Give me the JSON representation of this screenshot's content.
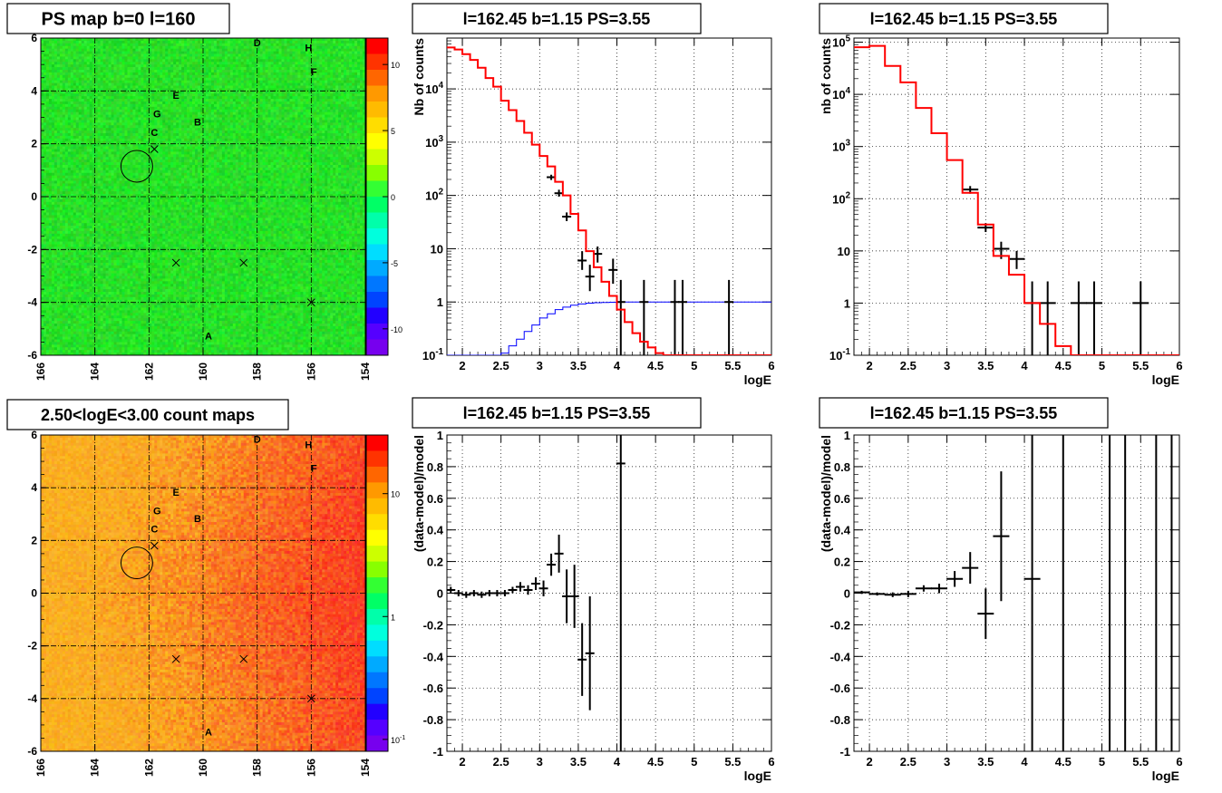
{
  "colors": {
    "frame": "#000000",
    "model_line": "#ff0000",
    "source_line": "#0000ff",
    "data_points": "#000000",
    "grid": "#000000",
    "ps_map_base": "#22e02a",
    "count_map_base": "#f2a32c"
  },
  "chart_data": [
    {
      "id": "ps-map",
      "type": "heatmap",
      "title": "PS map b=0 l=160",
      "x_ticks": [
        "166",
        "164",
        "162",
        "160",
        "158",
        "156",
        "154"
      ],
      "y_ticks": [
        "6",
        "4",
        "2",
        "0",
        "-2",
        "-4",
        "-6"
      ],
      "xlim": [
        166,
        154
      ],
      "ylim": [
        -6,
        6
      ],
      "colorbar_ticks": [
        "10",
        "5",
        "0",
        "-5",
        "-10"
      ],
      "colorbar_range": [
        -12,
        12
      ],
      "source_labels": [
        {
          "label": "D",
          "l": 158.0,
          "b": 5.7
        },
        {
          "label": "H",
          "l": 156.1,
          "b": 5.5
        },
        {
          "label": "F",
          "l": 155.9,
          "b": 4.6
        },
        {
          "label": "E",
          "l": 161.0,
          "b": 3.7
        },
        {
          "label": "G",
          "l": 161.7,
          "b": 3.0
        },
        {
          "label": "B",
          "l": 160.2,
          "b": 2.7
        },
        {
          "label": "C",
          "l": 161.8,
          "b": 2.3
        },
        {
          "label": "A",
          "l": 159.8,
          "b": -5.4
        }
      ],
      "crosses": [
        {
          "l": 161.8,
          "b": 1.8
        },
        {
          "l": 161.0,
          "b": -2.5
        },
        {
          "l": 158.5,
          "b": -2.5
        },
        {
          "l": 156.0,
          "b": -4.0
        }
      ],
      "circle": {
        "l": 162.45,
        "b": 1.15,
        "r": 0.5
      }
    },
    {
      "id": "count-map",
      "type": "heatmap",
      "title": "2.50<logE<3.00 count maps",
      "x_ticks": [
        "166",
        "164",
        "162",
        "160",
        "158",
        "156",
        "154"
      ],
      "y_ticks": [
        "6",
        "4",
        "2",
        "0",
        "-2",
        "-4",
        "-6"
      ],
      "xlim": [
        166,
        154
      ],
      "ylim": [
        -6,
        6
      ],
      "colorbar_ticks": [
        "10",
        "1",
        "10-1"
      ],
      "colorbar_range": [
        0.08,
        30
      ],
      "colorbar_scale": "log"
    },
    {
      "id": "spectrum-fine",
      "type": "line",
      "title": "l=162.45 b=1.15 PS=3.55",
      "xlabel": "logE",
      "ylabel": "Nb of counts",
      "xlim": [
        1.8,
        6
      ],
      "ylim": [
        0.1,
        90000
      ],
      "yscale": "log",
      "grid": true,
      "x_ticks": [
        "2",
        "2.5",
        "3",
        "3.5",
        "4",
        "4.5",
        "5",
        "5.5",
        "6"
      ],
      "y_ticks": [
        "10^-1",
        "1",
        "10",
        "10^2",
        "10^3",
        "10^4"
      ],
      "model_step": {
        "bin_edges": [
          1.8,
          1.9,
          2.0,
          2.1,
          2.2,
          2.3,
          2.4,
          2.5,
          2.6,
          2.7,
          2.8,
          2.9,
          3.0,
          3.1,
          3.2,
          3.3,
          3.4,
          3.5,
          3.6,
          3.7,
          3.8,
          3.9,
          4.0,
          4.1,
          4.2,
          4.3,
          4.4,
          4.5,
          4.6,
          4.7,
          4.8,
          4.9,
          5.0,
          5.1,
          5.2,
          5.3,
          5.4,
          5.5,
          5.6,
          5.7,
          5.8,
          5.9,
          6.0
        ],
        "values": [
          60000,
          55000,
          45000,
          35000,
          25000,
          16000,
          11000,
          6000,
          4000,
          2500,
          1500,
          900,
          550,
          350,
          180,
          100,
          45,
          22,
          9,
          4.5,
          2.4,
          1.3,
          0.72,
          0.42,
          0.26,
          0.18,
          0.14,
          0.11,
          0.1,
          0.1,
          0.1,
          0.1,
          0.1,
          0.1,
          0.1,
          0.1,
          0.1,
          0.1,
          0.1,
          0.1,
          0.1,
          0.1
        ]
      },
      "source_step": {
        "bin_edges": [
          1.8,
          1.9,
          2.0,
          2.1,
          2.2,
          2.3,
          2.4,
          2.5,
          2.6,
          2.7,
          2.8,
          2.9,
          3.0,
          3.1,
          3.2,
          3.3,
          3.4,
          3.5,
          3.6,
          3.7,
          3.8,
          3.9,
          4.0,
          4.1,
          4.2,
          4.3,
          4.4,
          4.5,
          4.6,
          4.7,
          4.8,
          4.9,
          5.0,
          5.1,
          5.2,
          5.3,
          5.4,
          5.5,
          5.6,
          5.7,
          5.8,
          5.9,
          6.0
        ],
        "values": [
          0.05,
          0.05,
          0.05,
          0.05,
          0.05,
          0.05,
          0.08,
          0.11,
          0.15,
          0.2,
          0.28,
          0.37,
          0.5,
          0.6,
          0.72,
          0.8,
          0.87,
          0.92,
          0.95,
          0.97,
          0.98,
          0.99,
          1,
          1,
          1,
          1,
          1,
          1,
          1,
          1,
          1,
          1,
          1,
          1,
          1,
          1,
          1,
          1,
          1,
          1,
          1,
          1
        ]
      },
      "data_points": [
        {
          "x": 3.15,
          "y": 220,
          "ylo": 195,
          "yhi": 245
        },
        {
          "x": 3.25,
          "y": 110,
          "ylo": 95,
          "yhi": 128
        },
        {
          "x": 3.35,
          "y": 40,
          "ylo": 33,
          "yhi": 48
        },
        {
          "x": 3.55,
          "y": 6,
          "ylo": 4,
          "yhi": 9
        },
        {
          "x": 3.65,
          "y": 3,
          "ylo": 1.6,
          "yhi": 5
        },
        {
          "x": 3.75,
          "y": 8,
          "ylo": 5.5,
          "yhi": 11
        },
        {
          "x": 3.95,
          "y": 4,
          "ylo": 2.2,
          "yhi": 6.5
        },
        {
          "x": 4.05,
          "y": 1,
          "ylo": 0.1,
          "yhi": 2.6
        },
        {
          "x": 4.35,
          "y": 1,
          "ylo": 0.1,
          "yhi": 2.6
        },
        {
          "x": 4.75,
          "y": 1,
          "ylo": 0.1,
          "yhi": 2.6
        },
        {
          "x": 4.85,
          "y": 1,
          "ylo": 0.1,
          "yhi": 2.6
        },
        {
          "x": 5.45,
          "y": 1,
          "ylo": 0.1,
          "yhi": 2.6
        }
      ]
    },
    {
      "id": "spectrum-coarse",
      "type": "line",
      "title": "l=162.45 b=1.15 PS=3.55",
      "xlabel": "logE",
      "ylabel": "nb of counts",
      "xlim": [
        1.8,
        6
      ],
      "ylim": [
        0.1,
        120000
      ],
      "yscale": "log",
      "grid": true,
      "x_ticks": [
        "2",
        "2.5",
        "3",
        "3.5",
        "4",
        "4.5",
        "5",
        "5.5",
        "6"
      ],
      "y_ticks": [
        "10^-1",
        "1",
        "10",
        "10^2",
        "10^3",
        "10^4",
        "10^5"
      ],
      "model_step": {
        "bin_edges": [
          1.8,
          2.0,
          2.2,
          2.4,
          2.6,
          2.8,
          3.0,
          3.2,
          3.4,
          3.6,
          3.8,
          4.0,
          4.2,
          4.4,
          4.6,
          4.8,
          5.0,
          5.2,
          5.4,
          5.6,
          5.8,
          6.0
        ],
        "values": [
          80000,
          85000,
          35000,
          17000,
          5500,
          1800,
          550,
          130,
          32,
          8,
          3.5,
          1,
          0.4,
          0.15,
          0.1,
          0.1,
          0.1,
          0.1,
          0.1,
          0.1,
          0.1
        ]
      },
      "data_points": [
        {
          "x": 3.3,
          "y": 150,
          "ylo": 125,
          "yhi": 175
        },
        {
          "x": 3.5,
          "y": 28,
          "ylo": 23,
          "yhi": 34
        },
        {
          "x": 3.7,
          "y": 11,
          "ylo": 7,
          "yhi": 15
        },
        {
          "x": 3.9,
          "y": 7,
          "ylo": 4.5,
          "yhi": 10
        },
        {
          "x": 4.1,
          "y": 1,
          "ylo": 0.1,
          "yhi": 2.6
        },
        {
          "x": 4.3,
          "y": 1,
          "ylo": 0.1,
          "yhi": 2.6
        },
        {
          "x": 4.7,
          "y": 1,
          "ylo": 0.1,
          "yhi": 2.6
        },
        {
          "x": 4.9,
          "y": 1,
          "ylo": 0.1,
          "yhi": 2.6
        },
        {
          "x": 5.5,
          "y": 1,
          "ylo": 0.1,
          "yhi": 2.6
        }
      ]
    },
    {
      "id": "residual-fine",
      "type": "scatter",
      "title": "l=162.45 b=1.15 PS=3.55",
      "xlabel": "logE",
      "ylabel": "(data-model)/model",
      "xlim": [
        1.8,
        6
      ],
      "ylim": [
        -1,
        1
      ],
      "grid": true,
      "x_ticks": [
        "2",
        "2.5",
        "3",
        "3.5",
        "4",
        "4.5",
        "5",
        "5.5",
        "6"
      ],
      "y_ticks": [
        "-1",
        "-0.8",
        "-0.6",
        "-0.4",
        "-0.2",
        "0",
        "0.2",
        "0.4",
        "0.6",
        "0.8",
        "1"
      ],
      "data_points": [
        {
          "x": 1.85,
          "y": 0.02,
          "err": 0.02
        },
        {
          "x": 1.95,
          "y": 0.0,
          "err": 0.02
        },
        {
          "x": 2.05,
          "y": -0.01,
          "err": 0.02
        },
        {
          "x": 2.15,
          "y": 0.0,
          "err": 0.02
        },
        {
          "x": 2.25,
          "y": -0.01,
          "err": 0.02
        },
        {
          "x": 2.35,
          "y": 0.0,
          "err": 0.02
        },
        {
          "x": 2.45,
          "y": 0.0,
          "err": 0.02
        },
        {
          "x": 2.55,
          "y": 0.0,
          "err": 0.02
        },
        {
          "x": 2.65,
          "y": 0.02,
          "err": 0.02
        },
        {
          "x": 2.75,
          "y": 0.04,
          "err": 0.03
        },
        {
          "x": 2.85,
          "y": 0.02,
          "err": 0.03
        },
        {
          "x": 2.95,
          "y": 0.06,
          "err": 0.04
        },
        {
          "x": 3.05,
          "y": 0.03,
          "err": 0.05
        },
        {
          "x": 3.15,
          "y": 0.18,
          "err": 0.07
        },
        {
          "x": 3.25,
          "y": 0.25,
          "err": 0.12
        },
        {
          "x": 3.35,
          "y": -0.02,
          "err": 0.17
        },
        {
          "x": 3.45,
          "y": -0.02,
          "err": 0.2
        },
        {
          "x": 3.55,
          "y": -0.42,
          "err": 0.23
        },
        {
          "x": 3.65,
          "y": -0.38,
          "err": 0.36
        },
        {
          "x": 4.05,
          "y": 0.82,
          "err": 1.9
        }
      ]
    },
    {
      "id": "residual-coarse",
      "type": "scatter",
      "title": "l=162.45 b=1.15 PS=3.55",
      "xlabel": "logE",
      "ylabel": "(data-model)/model",
      "xlim": [
        1.8,
        6
      ],
      "ylim": [
        -1,
        1
      ],
      "grid": true,
      "x_ticks": [
        "2",
        "2.5",
        "3",
        "3.5",
        "4",
        "4.5",
        "5",
        "5.5",
        "6"
      ],
      "y_ticks": [
        "-1",
        "-0.8",
        "-0.6",
        "-0.4",
        "-0.2",
        "0",
        "0.2",
        "0.4",
        "0.6",
        "0.8",
        "1"
      ],
      "data_points": [
        {
          "x": 1.9,
          "y": 0.005,
          "err": 0.01
        },
        {
          "x": 2.1,
          "y": -0.005,
          "err": 0.01
        },
        {
          "x": 2.3,
          "y": -0.01,
          "err": 0.015
        },
        {
          "x": 2.5,
          "y": -0.005,
          "err": 0.02
        },
        {
          "x": 2.7,
          "y": 0.03,
          "err": 0.02
        },
        {
          "x": 2.9,
          "y": 0.03,
          "err": 0.03
        },
        {
          "x": 3.1,
          "y": 0.09,
          "err": 0.05
        },
        {
          "x": 3.3,
          "y": 0.16,
          "err": 0.1
        },
        {
          "x": 3.5,
          "y": -0.13,
          "err": 0.16
        },
        {
          "x": 3.7,
          "y": 0.36,
          "err": 0.41
        },
        {
          "x": 4.1,
          "y": 0.09,
          "err": 1.6
        },
        {
          "x": 4.5,
          "y": 1.5,
          "err": 3.0
        },
        {
          "x": 5.1,
          "y": 1.5,
          "err": 3.0
        },
        {
          "x": 5.3,
          "y": 1.5,
          "err": 3.0
        },
        {
          "x": 5.7,
          "y": 1.5,
          "err": 3.0
        },
        {
          "x": 5.9,
          "y": 1.5,
          "err": 3.0
        }
      ]
    }
  ]
}
